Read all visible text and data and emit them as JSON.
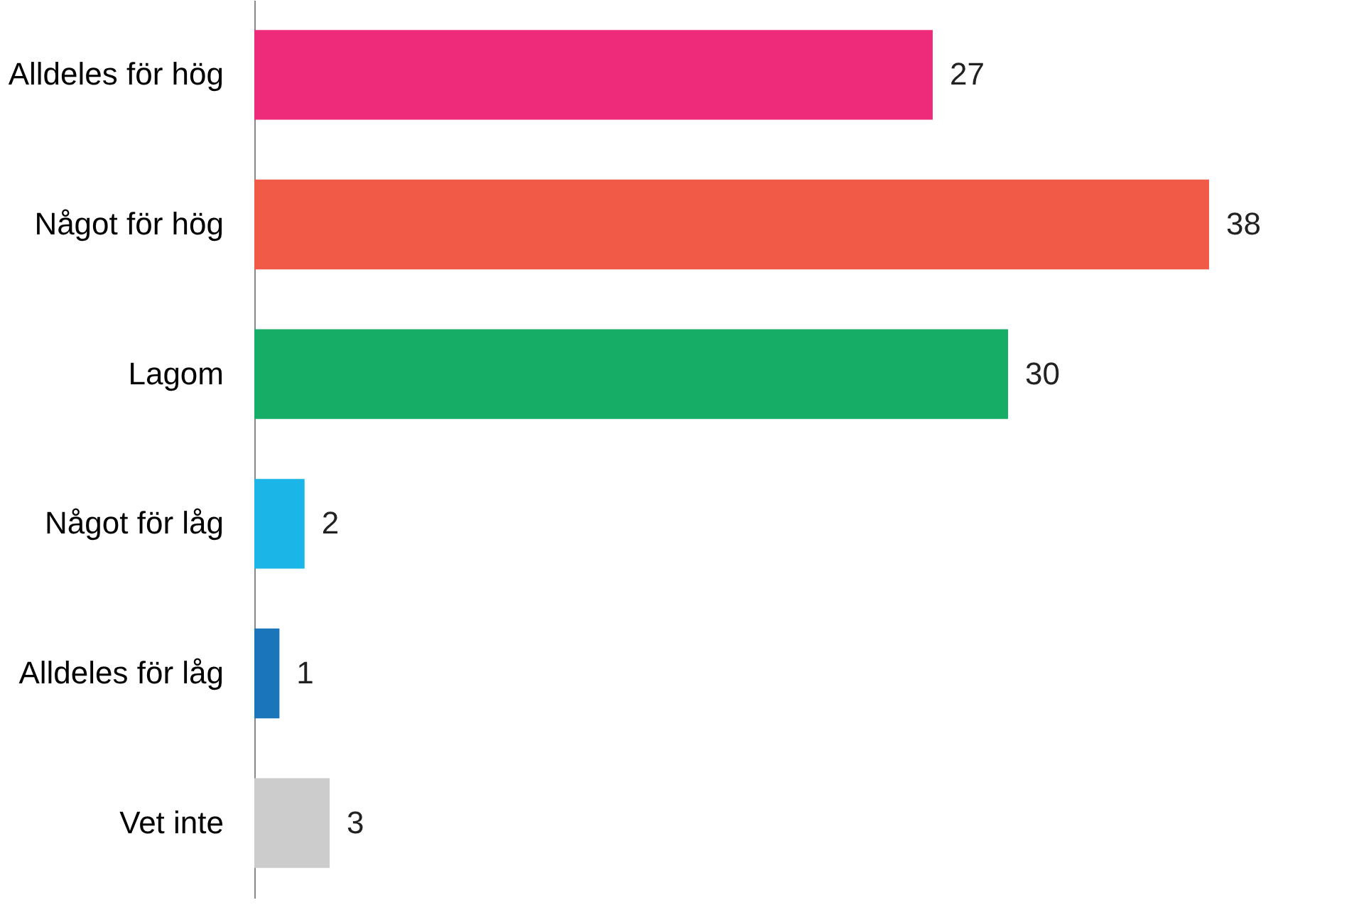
{
  "chart_data": {
    "type": "bar",
    "orientation": "horizontal",
    "categories": [
      "Alldeles för hög",
      "Något för hög",
      "Lagom",
      "Något för låg",
      "Alldeles för låg",
      "Vet inte"
    ],
    "values": [
      27,
      38,
      30,
      2,
      1,
      3
    ],
    "colors": [
      "#ee2a7b",
      "#f15a46",
      "#16ad67",
      "#1bb5e8",
      "#1a75bb",
      "#cccccc"
    ],
    "data_labels": true
  }
}
